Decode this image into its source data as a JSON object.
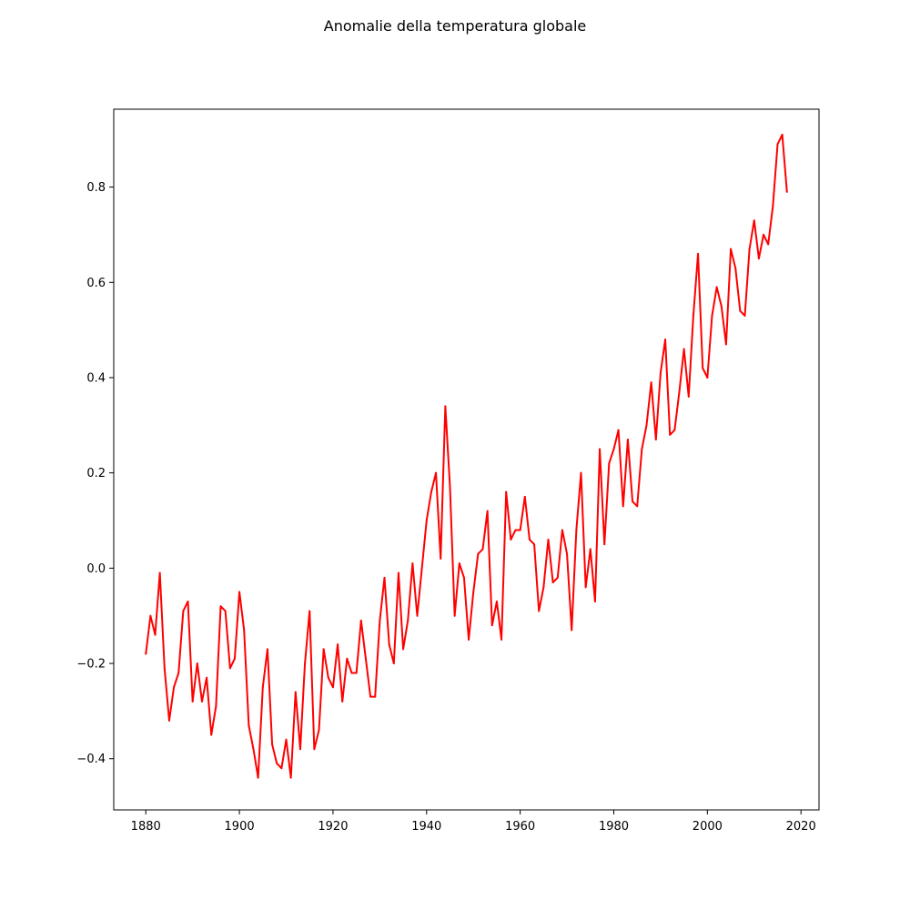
{
  "chart_data": {
    "type": "line",
    "title": "Anomalie della temperatura globale",
    "xlabel": "",
    "ylabel": "",
    "xlim": [
      1873.15,
      2023.85
    ],
    "ylim": [
      -0.5075,
      0.9635
    ],
    "xticks": [
      1880,
      1900,
      1920,
      1940,
      1960,
      1980,
      2000,
      2020
    ],
    "yticks": [
      -0.4,
      -0.2,
      0.0,
      0.2,
      0.4,
      0.6,
      0.8
    ],
    "grid": false,
    "legend": "none",
    "line_color": "#ff0000",
    "series": [
      {
        "x": [
          1880,
          1881,
          1882,
          1883,
          1884,
          1885,
          1886,
          1887,
          1888,
          1889,
          1890,
          1891,
          1892,
          1893,
          1894,
          1895,
          1896,
          1897,
          1898,
          1899,
          1900,
          1901,
          1902,
          1903,
          1904,
          1905,
          1906,
          1907,
          1908,
          1909,
          1910,
          1911,
          1912,
          1913,
          1914,
          1915,
          1916,
          1917,
          1918,
          1919,
          1920,
          1921,
          1922,
          1923,
          1924,
          1925,
          1926,
          1927,
          1928,
          1929,
          1930,
          1931,
          1932,
          1933,
          1934,
          1935,
          1936,
          1937,
          1938,
          1939,
          1940,
          1941,
          1942,
          1943,
          1944,
          1945,
          1946,
          1947,
          1948,
          1949,
          1950,
          1951,
          1952,
          1953,
          1954,
          1955,
          1956,
          1957,
          1958,
          1959,
          1960,
          1961,
          1962,
          1963,
          1964,
          1965,
          1966,
          1967,
          1968,
          1969,
          1970,
          1971,
          1972,
          1973,
          1974,
          1975,
          1976,
          1977,
          1978,
          1979,
          1980,
          1981,
          1982,
          1983,
          1984,
          1985,
          1986,
          1987,
          1988,
          1989,
          1990,
          1991,
          1992,
          1993,
          1994,
          1995,
          1996,
          1997,
          1998,
          1999,
          2000,
          2001,
          2002,
          2003,
          2004,
          2005,
          2006,
          2007,
          2008,
          2009,
          2010,
          2011,
          2012,
          2013,
          2014,
          2015,
          2016,
          2017
        ],
        "values": [
          -0.18,
          -0.1,
          -0.14,
          -0.01,
          -0.21,
          -0.32,
          -0.25,
          -0.22,
          -0.09,
          -0.07,
          -0.28,
          -0.2,
          -0.28,
          -0.23,
          -0.35,
          -0.29,
          -0.08,
          -0.09,
          -0.21,
          -0.19,
          -0.05,
          -0.13,
          -0.33,
          -0.38,
          -0.44,
          -0.25,
          -0.17,
          -0.37,
          -0.41,
          -0.42,
          -0.36,
          -0.44,
          -0.26,
          -0.38,
          -0.2,
          -0.09,
          -0.38,
          -0.34,
          -0.17,
          -0.23,
          -0.25,
          -0.16,
          -0.28,
          -0.19,
          -0.22,
          -0.22,
          -0.11,
          -0.19,
          -0.27,
          -0.27,
          -0.11,
          -0.02,
          -0.16,
          -0.2,
          -0.01,
          -0.17,
          -0.11,
          0.01,
          -0.1,
          0.0,
          0.1,
          0.16,
          0.2,
          0.02,
          0.34,
          0.17,
          -0.1,
          0.01,
          -0.02,
          -0.15,
          -0.05,
          0.03,
          0.04,
          0.12,
          -0.12,
          -0.07,
          -0.15,
          0.16,
          0.06,
          0.08,
          0.08,
          0.15,
          0.06,
          0.05,
          -0.09,
          -0.04,
          0.06,
          -0.03,
          -0.02,
          0.08,
          0.03,
          -0.13,
          0.08,
          0.2,
          -0.04,
          0.04,
          -0.07,
          0.25,
          0.05,
          0.22,
          0.25,
          0.29,
          0.13,
          0.27,
          0.14,
          0.13,
          0.25,
          0.3,
          0.39,
          0.27,
          0.41,
          0.48,
          0.28,
          0.29,
          0.37,
          0.46,
          0.36,
          0.53,
          0.66,
          0.42,
          0.4,
          0.53,
          0.59,
          0.55,
          0.47,
          0.67,
          0.63,
          0.54,
          0.53,
          0.67,
          0.73,
          0.65,
          0.7,
          0.68,
          0.76,
          0.89,
          0.91,
          0.79
        ]
      }
    ]
  }
}
